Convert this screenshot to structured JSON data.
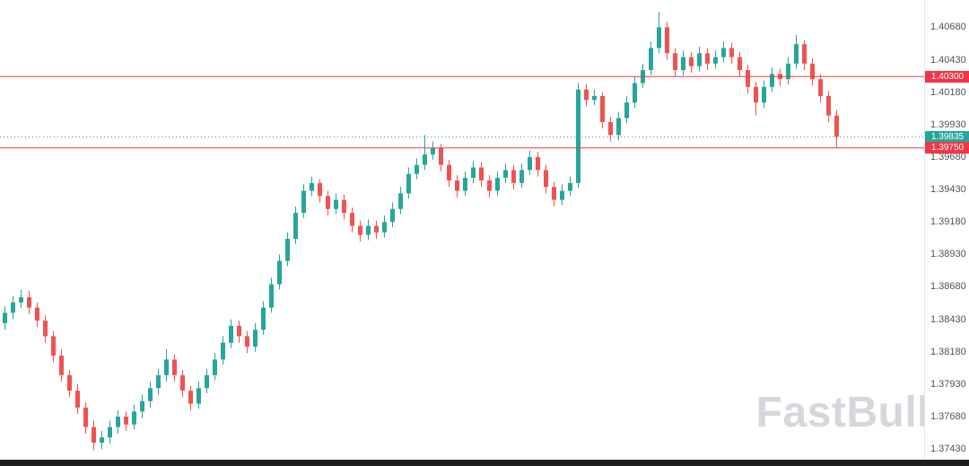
{
  "watermark": {
    "text": "FastBull"
  },
  "chart_data": {
    "type": "candlestick",
    "title": "",
    "xlabel": "",
    "ylabel": "",
    "ylim": [
      1.373,
      1.4089
    ],
    "grid": false,
    "x_labels_visible": false,
    "legend": "none",
    "y_ticks": [
      "1.40680",
      "1.40430",
      "1.40180",
      "1.39930",
      "1.39680",
      "1.39430",
      "1.39180",
      "1.38930",
      "1.38680",
      "1.38430",
      "1.38180",
      "1.37930",
      "1.37680",
      "1.37430"
    ],
    "colors": {
      "bullish": "#26a69a",
      "bearish": "#ef5350"
    },
    "levels": {
      "resistance": {
        "label": "1.40300",
        "price": 1.403,
        "style": "solid",
        "color": "#f23645"
      },
      "support": {
        "label": "1.39750",
        "price": 1.3975,
        "style": "solid",
        "color": "#f23645"
      },
      "current_price": {
        "label": "1.39835",
        "price": 1.39835,
        "style": "dotted",
        "color": "#26a69a"
      }
    },
    "ohlc": [
      [
        1.384,
        1.3853,
        1.3835,
        1.3848
      ],
      [
        1.3848,
        1.3861,
        1.3843,
        1.3856
      ],
      [
        1.3856,
        1.3866,
        1.3852,
        1.386
      ],
      [
        1.386,
        1.3865,
        1.3847,
        1.3852
      ],
      [
        1.3852,
        1.3856,
        1.3837,
        1.3842
      ],
      [
        1.3842,
        1.3846,
        1.3825,
        1.383
      ],
      [
        1.383,
        1.3834,
        1.381,
        1.3815
      ],
      [
        1.3815,
        1.382,
        1.3795,
        1.38
      ],
      [
        1.38,
        1.3804,
        1.3783,
        1.3788
      ],
      [
        1.3788,
        1.3793,
        1.377,
        1.3775
      ],
      [
        1.3775,
        1.3779,
        1.3755,
        1.376
      ],
      [
        1.376,
        1.3765,
        1.3742,
        1.3748
      ],
      [
        1.3748,
        1.3757,
        1.3743,
        1.3752
      ],
      [
        1.3752,
        1.3765,
        1.3747,
        1.376
      ],
      [
        1.376,
        1.3773,
        1.3755,
        1.3768
      ],
      [
        1.3768,
        1.3772,
        1.3757,
        1.3762
      ],
      [
        1.3762,
        1.3777,
        1.3758,
        1.3772
      ],
      [
        1.3772,
        1.3785,
        1.3767,
        1.378
      ],
      [
        1.378,
        1.3795,
        1.3775,
        1.379
      ],
      [
        1.379,
        1.3805,
        1.3785,
        1.38
      ],
      [
        1.38,
        1.382,
        1.3795,
        1.3812
      ],
      [
        1.3812,
        1.3816,
        1.3795,
        1.38
      ],
      [
        1.38,
        1.3804,
        1.3783,
        1.3788
      ],
      [
        1.3788,
        1.3792,
        1.3773,
        1.3778
      ],
      [
        1.3778,
        1.3795,
        1.3774,
        1.379
      ],
      [
        1.379,
        1.3805,
        1.3786,
        1.38
      ],
      [
        1.38,
        1.3817,
        1.3796,
        1.3812
      ],
      [
        1.3812,
        1.383,
        1.3808,
        1.3825
      ],
      [
        1.3825,
        1.3843,
        1.3821,
        1.3838
      ],
      [
        1.3838,
        1.3842,
        1.3825,
        1.383
      ],
      [
        1.383,
        1.3834,
        1.3817,
        1.3822
      ],
      [
        1.3822,
        1.384,
        1.3818,
        1.3835
      ],
      [
        1.3835,
        1.3857,
        1.3831,
        1.3852
      ],
      [
        1.3852,
        1.3875,
        1.3848,
        1.387
      ],
      [
        1.387,
        1.3893,
        1.3866,
        1.3888
      ],
      [
        1.3888,
        1.391,
        1.3884,
        1.3905
      ],
      [
        1.3905,
        1.393,
        1.3901,
        1.3925
      ],
      [
        1.3925,
        1.3947,
        1.3921,
        1.3942
      ],
      [
        1.3942,
        1.3953,
        1.3938,
        1.3948
      ],
      [
        1.3948,
        1.3951,
        1.3933,
        1.3938
      ],
      [
        1.3938,
        1.3942,
        1.3923,
        1.3928
      ],
      [
        1.3928,
        1.394,
        1.3924,
        1.3935
      ],
      [
        1.3935,
        1.3939,
        1.392,
        1.3925
      ],
      [
        1.3925,
        1.3929,
        1.391,
        1.3915
      ],
      [
        1.3915,
        1.3919,
        1.3903,
        1.3908
      ],
      [
        1.3908,
        1.392,
        1.3904,
        1.3915
      ],
      [
        1.3915,
        1.3919,
        1.3905,
        1.391
      ],
      [
        1.391,
        1.3923,
        1.3906,
        1.3918
      ],
      [
        1.3918,
        1.3933,
        1.3914,
        1.3928
      ],
      [
        1.3928,
        1.3945,
        1.3924,
        1.394
      ],
      [
        1.394,
        1.396,
        1.3936,
        1.3955
      ],
      [
        1.3955,
        1.3967,
        1.3951,
        1.3962
      ],
      [
        1.3962,
        1.3985,
        1.3958,
        1.397
      ],
      [
        1.397,
        1.398,
        1.3966,
        1.3975
      ],
      [
        1.3975,
        1.3978,
        1.3957,
        1.3962
      ],
      [
        1.3962,
        1.3966,
        1.3945,
        1.395
      ],
      [
        1.395,
        1.3954,
        1.3937,
        1.3942
      ],
      [
        1.3942,
        1.3957,
        1.3938,
        1.3952
      ],
      [
        1.3952,
        1.3965,
        1.3948,
        1.396
      ],
      [
        1.396,
        1.3964,
        1.3945,
        1.395
      ],
      [
        1.395,
        1.3954,
        1.3937,
        1.3942
      ],
      [
        1.3942,
        1.3957,
        1.3938,
        1.3952
      ],
      [
        1.3952,
        1.3963,
        1.3948,
        1.3958
      ],
      [
        1.3958,
        1.3962,
        1.3943,
        1.3948
      ],
      [
        1.3948,
        1.3963,
        1.3944,
        1.3958
      ],
      [
        1.3958,
        1.3973,
        1.3954,
        1.3968
      ],
      [
        1.3968,
        1.3972,
        1.3953,
        1.3958
      ],
      [
        1.3958,
        1.3962,
        1.394,
        1.3945
      ],
      [
        1.3945,
        1.3949,
        1.393,
        1.3935
      ],
      [
        1.3935,
        1.3947,
        1.3931,
        1.3942
      ],
      [
        1.3942,
        1.3953,
        1.3938,
        1.3948
      ],
      [
        1.3948,
        1.4025,
        1.3944,
        1.402
      ],
      [
        1.402,
        1.4024,
        1.4007,
        1.4012
      ],
      [
        1.4012,
        1.402,
        1.4008,
        1.4015
      ],
      [
        1.4015,
        1.4018,
        1.399,
        1.3995
      ],
      [
        1.3995,
        1.3999,
        1.398,
        1.3985
      ],
      [
        1.3985,
        1.4003,
        1.3981,
        1.3998
      ],
      [
        1.3998,
        1.4015,
        1.3994,
        1.401
      ],
      [
        1.401,
        1.403,
        1.4006,
        1.4025
      ],
      [
        1.4025,
        1.404,
        1.4021,
        1.4035
      ],
      [
        1.4035,
        1.4057,
        1.4031,
        1.4052
      ],
      [
        1.4052,
        1.408,
        1.4048,
        1.4068
      ],
      [
        1.4068,
        1.4072,
        1.4043,
        1.4048
      ],
      [
        1.4048,
        1.4052,
        1.403,
        1.4035
      ],
      [
        1.4035,
        1.405,
        1.4031,
        1.4045
      ],
      [
        1.4045,
        1.4049,
        1.4033,
        1.4038
      ],
      [
        1.4038,
        1.4053,
        1.4034,
        1.4048
      ],
      [
        1.4048,
        1.4052,
        1.4035,
        1.404
      ],
      [
        1.404,
        1.405,
        1.4036,
        1.4045
      ],
      [
        1.4045,
        1.4057,
        1.4041,
        1.4052
      ],
      [
        1.4052,
        1.4056,
        1.404,
        1.4045
      ],
      [
        1.4045,
        1.4049,
        1.403,
        1.4035
      ],
      [
        1.4035,
        1.4039,
        1.4017,
        1.4022
      ],
      [
        1.4022,
        1.4026,
        1.4,
        1.401
      ],
      [
        1.401,
        1.4027,
        1.4006,
        1.4022
      ],
      [
        1.4022,
        1.4037,
        1.4018,
        1.4032
      ],
      [
        1.4032,
        1.4036,
        1.4023,
        1.4028
      ],
      [
        1.4028,
        1.4045,
        1.4024,
        1.404
      ],
      [
        1.404,
        1.4062,
        1.4036,
        1.4055
      ],
      [
        1.4055,
        1.4058,
        1.4035,
        1.404
      ],
      [
        1.404,
        1.4044,
        1.4023,
        1.4028
      ],
      [
        1.4028,
        1.4032,
        1.401,
        1.4015
      ],
      [
        1.4015,
        1.4019,
        1.3995,
        1.4
      ],
      [
        1.4,
        1.4004,
        1.3975,
        1.39835
      ]
    ]
  }
}
